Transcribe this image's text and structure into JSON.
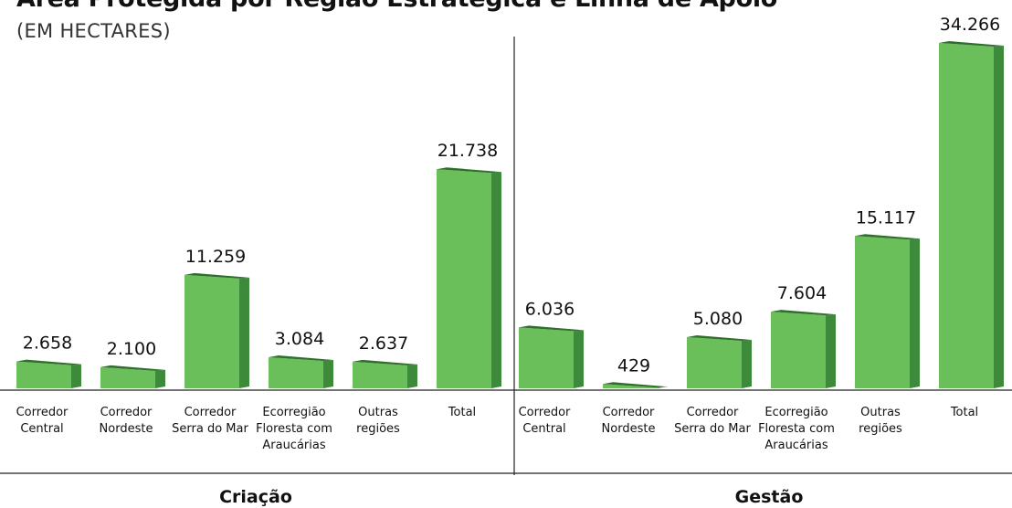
{
  "title": "Área Protegida por Região Estratégica e Linha de Apoio",
  "subtitle": "(EM HECTARES)",
  "colors": {
    "bar_front": "#6abf5a",
    "bar_side": "#3d8a3a",
    "bar_top": "#2f6f2c"
  },
  "chart_data": [
    {
      "type": "bar",
      "group": "Criação",
      "categories": [
        "Corredor Central",
        "Corredor Nordeste",
        "Corredor Serra do Mar",
        "Ecorregião Floresta com Araucárias",
        "Outras regiões",
        "Total"
      ],
      "category_lines": [
        [
          "Corredor",
          "Central"
        ],
        [
          "Corredor",
          "Nordeste"
        ],
        [
          "Corredor",
          "Serra do Mar"
        ],
        [
          "Ecorregião",
          "Floresta com",
          "Araucárias"
        ],
        [
          "Outras",
          "regiões"
        ],
        [
          "Total"
        ]
      ],
      "values": [
        2658,
        2100,
        11259,
        3084,
        2637,
        21738
      ],
      "value_labels": [
        "2.658",
        "2.100",
        "11.259",
        "3.084",
        "2.637",
        "21.738"
      ]
    },
    {
      "type": "bar",
      "group": "Gestão",
      "categories": [
        "Corredor Central",
        "Corredor Nordeste",
        "Corredor Serra do Mar",
        "Ecorregião Floresta com Araucárias",
        "Outras regiões",
        "Total"
      ],
      "category_lines": [
        [
          "Corredor",
          "Central"
        ],
        [
          "Corredor",
          "Nordeste"
        ],
        [
          "Corredor",
          "Serra do Mar"
        ],
        [
          "Ecorregião",
          "Floresta com",
          "Araucárias"
        ],
        [
          "Outras",
          "regiões"
        ],
        [
          "Total"
        ]
      ],
      "values": [
        6036,
        429,
        5080,
        7604,
        15117,
        34266
      ],
      "value_labels": [
        "6.036",
        "429",
        "5.080",
        "7.604",
        "15.117",
        "34.266"
      ]
    }
  ]
}
